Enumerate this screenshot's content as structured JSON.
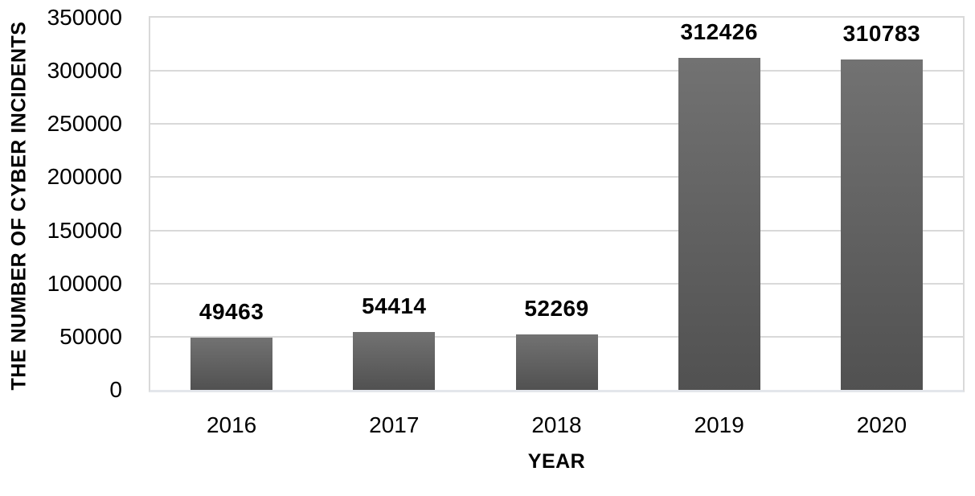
{
  "chart_data": {
    "type": "bar",
    "title": "",
    "categories": [
      "2016",
      "2017",
      "2018",
      "2019",
      "2020"
    ],
    "values": [
      49463,
      54414,
      52269,
      312426,
      310783
    ],
    "data_labels": [
      "49463",
      "54414",
      "52269",
      "312426",
      "310783"
    ],
    "xlabel": "YEAR",
    "ylabel": "THE NUMBER OF CYBER INCIDENTS",
    "ylim": [
      0,
      350000
    ],
    "ytick_step": 50000,
    "yticks": [
      0,
      50000,
      100000,
      150000,
      200000,
      250000,
      300000,
      350000
    ],
    "grid": "horizontal",
    "legend": "none",
    "colors": {
      "bar_top": "#727272",
      "bar_bottom": "#515151",
      "gridline": "#d9d9d9",
      "plot_border": "#d9d9d9",
      "axis_line": "#e3e6eb",
      "text": "#000000",
      "background": "#ffffff"
    }
  }
}
